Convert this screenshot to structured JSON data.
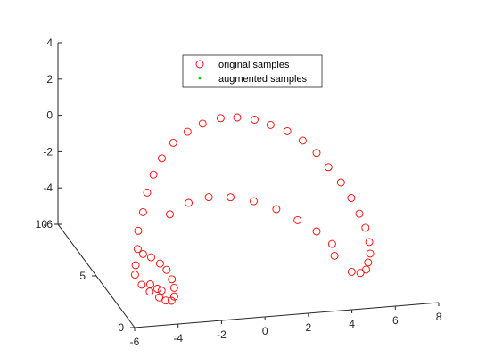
{
  "chart_data": {
    "type": "scatter",
    "title": "",
    "xlabel": "",
    "ylabel": "",
    "zlabel": "",
    "xlim": [
      -6,
      8
    ],
    "ylim": [
      0,
      10
    ],
    "zlim": [
      -6,
      4
    ],
    "x_ticks": [
      "-6",
      "-4",
      "-2",
      "0",
      "2",
      "4",
      "6",
      "8"
    ],
    "y_ticks": [
      "0",
      "5",
      "10"
    ],
    "z_ticks": [
      "-6",
      "-4",
      "-2",
      "0",
      "2",
      "4"
    ],
    "grid": false,
    "legend_position": "top-center",
    "series": [
      {
        "name": "original samples",
        "marker": "open-circle",
        "color": "#ff0000",
        "points": [
          [
            -5.1,
            2.5,
            -4.6
          ],
          [
            -5.0,
            2.7,
            -4.2
          ],
          [
            -4.8,
            3.0,
            -3.5
          ],
          [
            -4.6,
            3.5,
            -2.8
          ],
          [
            -4.2,
            4.0,
            -2.1
          ],
          [
            -3.8,
            4.6,
            -1.4
          ],
          [
            -3.3,
            5.2,
            -0.8
          ],
          [
            -2.7,
            5.8,
            -0.3
          ],
          [
            -2.0,
            6.3,
            0.2
          ],
          [
            -1.2,
            6.7,
            0.5
          ],
          [
            -0.4,
            7.0,
            0.7
          ],
          [
            0.5,
            7.2,
            0.8
          ],
          [
            1.3,
            7.3,
            0.7
          ],
          [
            2.1,
            7.3,
            0.5
          ],
          [
            2.8,
            7.2,
            0.2
          ],
          [
            3.5,
            7.0,
            -0.1
          ],
          [
            4.1,
            6.7,
            -0.5
          ],
          [
            4.6,
            6.3,
            -1.0
          ],
          [
            5.0,
            5.9,
            -1.6
          ],
          [
            5.4,
            5.4,
            -2.2
          ],
          [
            5.7,
            4.9,
            -2.8
          ],
          [
            5.9,
            4.4,
            -3.4
          ],
          [
            6.0,
            3.9,
            -3.9
          ],
          [
            6.0,
            3.4,
            -4.4
          ],
          [
            5.9,
            3.0,
            -4.8
          ],
          [
            5.7,
            2.7,
            -5.1
          ],
          [
            5.5,
            2.4,
            -5.3
          ],
          [
            5.2,
            2.3,
            -5.4
          ],
          [
            4.8,
            2.3,
            -5.3
          ],
          [
            -4.9,
            2.2,
            -5.0
          ],
          [
            -4.6,
            2.0,
            -5.3
          ],
          [
            -4.2,
            1.9,
            -5.6
          ],
          [
            -3.9,
            1.9,
            -5.8
          ],
          [
            -3.6,
            2.0,
            -5.9
          ],
          [
            -3.4,
            2.2,
            -5.8
          ],
          [
            -3.3,
            2.5,
            -5.5
          ],
          [
            -3.3,
            2.8,
            -5.2
          ],
          [
            -3.4,
            3.2,
            -4.9
          ],
          [
            -3.6,
            3.5,
            -4.7
          ],
          [
            -3.9,
            3.8,
            -4.5
          ],
          [
            -4.2,
            4.0,
            -4.4
          ],
          [
            -2.4,
            5.6,
            -3.3
          ],
          [
            -1.4,
            6.0,
            -3.0
          ],
          [
            -0.4,
            6.2,
            -2.9
          ],
          [
            0.6,
            6.2,
            -3.0
          ],
          [
            1.6,
            6.0,
            -3.2
          ],
          [
            2.5,
            5.6,
            -3.5
          ],
          [
            3.3,
            5.1,
            -3.9
          ],
          [
            4.0,
            4.6,
            -4.3
          ],
          [
            4.5,
            4.0,
            -4.7
          ],
          [
            4.4,
            3.4,
            -5.0
          ],
          [
            -4.4,
            2.5,
            -5.2
          ],
          [
            -4.0,
            2.7,
            -5.6
          ],
          [
            -3.7,
            3.0,
            -5.9
          ]
        ]
      },
      {
        "name": "augmented samples",
        "marker": "dot",
        "color": "#00cc00",
        "points": []
      }
    ]
  }
}
